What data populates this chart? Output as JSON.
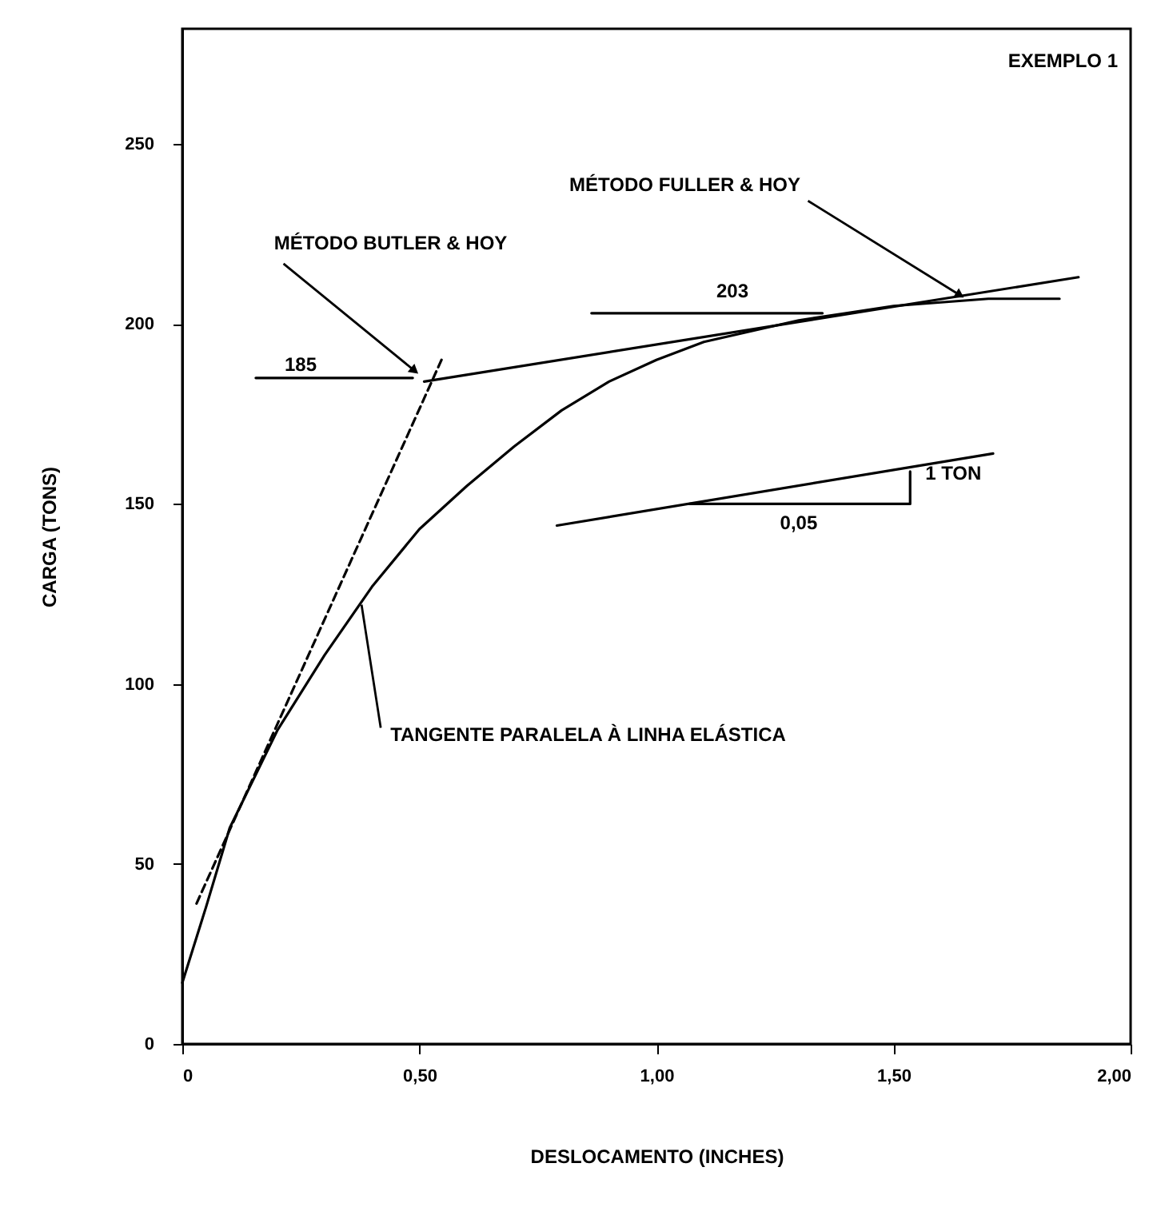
{
  "chart_data": {
    "type": "line",
    "xlabel": "DESLOCAMENTO (INCHES)",
    "ylabel": "CARGA (TONS)",
    "xlim": [
      0,
      2.0
    ],
    "ylim": [
      0,
      282
    ],
    "xticks": [
      {
        "value": 0,
        "label": "0"
      },
      {
        "value": 0.5,
        "label": "0,50"
      },
      {
        "value": 1.0,
        "label": "1,00"
      },
      {
        "value": 1.5,
        "label": "1,50"
      },
      {
        "value": 2.0,
        "label": "2,00"
      }
    ],
    "yticks": [
      0,
      50,
      100,
      150,
      200,
      250
    ],
    "grid": false,
    "series": [
      {
        "color": "#000000",
        "x": [
          0,
          0.05,
          0.1,
          0.2,
          0.3,
          0.4,
          0.5,
          0.6,
          0.7,
          0.8,
          0.9,
          1.0,
          1.1,
          1.2,
          1.3,
          1.4,
          1.5,
          1.6,
          1.7,
          1.85
        ],
        "values": [
          17,
          38,
          60,
          87,
          108,
          127,
          143,
          155,
          166,
          176,
          184,
          190,
          195,
          198,
          201,
          203,
          205,
          206,
          207,
          207
        ]
      },
      {
        "color": "#000000",
        "line_style": "dashed",
        "x": [
          0.03,
          0.55
        ],
        "values": [
          39,
          191
        ]
      },
      {
        "color": "#000000",
        "x": [
          0.51,
          1.89
        ],
        "values": [
          184,
          213
        ]
      },
      {
        "color": "#000000",
        "x": [
          0.79,
          1.71
        ],
        "values": [
          144,
          164
        ]
      },
      {
        "color": "#000000",
        "x": [
          1.07,
          1.535,
          1.535
        ],
        "values": [
          150,
          150,
          159
        ]
      },
      {
        "color": "#000000",
        "x": [
          0.155,
          0.486
        ],
        "values": [
          185,
          185
        ]
      },
      {
        "color": "#000000",
        "x": [
          0.863,
          1.35
        ],
        "values": [
          203,
          203
        ]
      }
    ],
    "annotations": [
      "EXEMPLO 1",
      {
        "text": "MÉTODO FULLER & HOY",
        "x": 1.64,
        "y": 208
      },
      {
        "text": "MÉTODO BUTLER & HOY",
        "x": 0.49,
        "y": 187
      },
      "185",
      "203",
      {
        "text": "TANGENTE PARALELA À LINHA ELÁSTICA",
        "x": 0.378,
        "y": 122
      },
      {
        "text": "1 TON",
        "x": 1.535,
        "y": 155
      },
      {
        "text": "0,05",
        "x": 1.3,
        "y": 150
      }
    ]
  }
}
